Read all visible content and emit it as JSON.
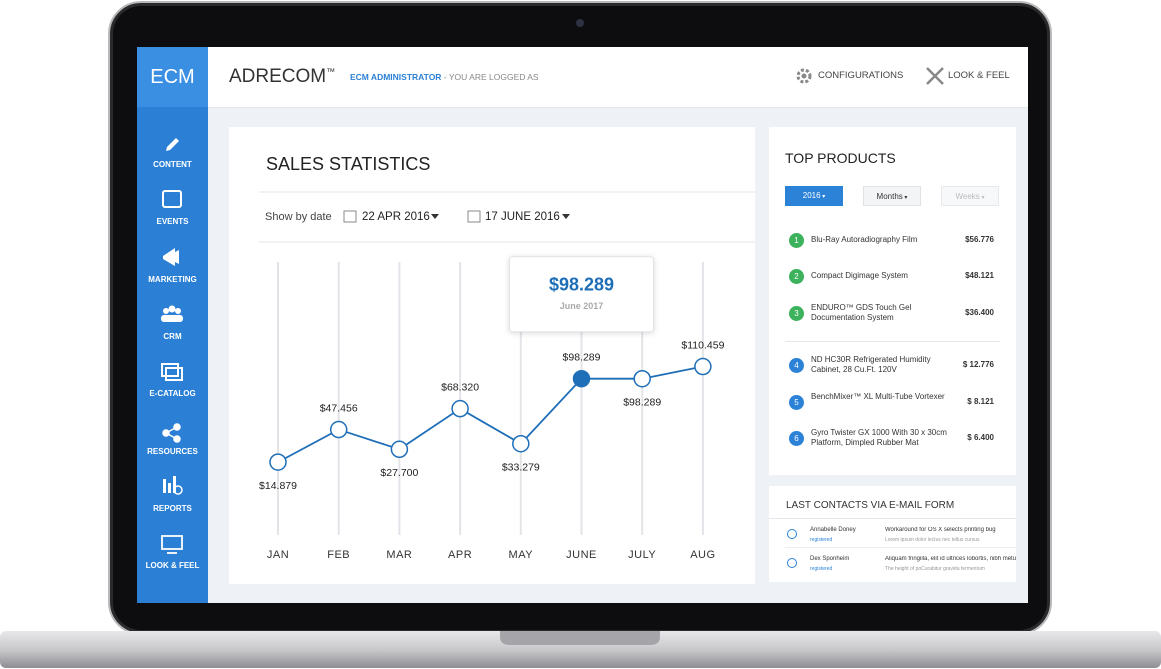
{
  "sidebar": {
    "logo": "ECM",
    "items": [
      "CONTENT",
      "EVENTS",
      "MARKETING",
      "CRM",
      "E-CATALOG",
      "RESOURCES",
      "REPORTS",
      "LOOK & FEEL"
    ]
  },
  "header": {
    "brand": "ADRECOM",
    "brand_mark": "™",
    "user": "ECM ADMINISTRATOR",
    "status": " - YOU ARE LOGGED AS",
    "actions": [
      "CONFIGURATIONS",
      "LOOK & FEEL"
    ]
  },
  "sales": {
    "title": "SALES STATISTICS",
    "filter_label": "Show by date",
    "date_from": "22 APR 2016",
    "date_to": "17 JUNE 2016",
    "tooltip": {
      "value": "$98.289",
      "date": "June 2017"
    },
    "chart_data": {
      "type": "line",
      "categories": [
        "JAN",
        "FEB",
        "MAR",
        "APR",
        "MAY",
        "JUNE",
        "JULY",
        "AUG"
      ],
      "values": [
        14.879,
        47.456,
        27.7,
        68.32,
        33.279,
        98.289,
        98.289,
        110.459
      ],
      "value_labels": [
        "$14.879",
        "$47.456",
        "$27.700",
        "$68.320",
        "$33.279",
        "$98.289",
        "$98.289",
        "$110.459"
      ],
      "color": "#1f6fb8",
      "ylim": [
        0,
        120
      ],
      "grid": true
    }
  },
  "top_products": {
    "title": "TOP PRODUCTS",
    "filters": [
      "2016",
      "Months",
      "Weeks"
    ],
    "items": [
      {
        "rank": 1,
        "name": "Blu-Ray Autoradiography Film",
        "price": "$56.776",
        "color": "#3cb25c"
      },
      {
        "rank": 2,
        "name": "Compact Digimage System",
        "price": "$48.121",
        "color": "#3cb25c"
      },
      {
        "rank": 3,
        "name": "ENDURO™ GDS Touch Gel Documentation System",
        "price": "$36.400",
        "color": "#3cb25c"
      },
      {
        "rank": 4,
        "name": "ND HC30R Refrigerated Humidity Cabinet, 28 Cu.Ft. 120V",
        "price": "$ 12.776",
        "color": "#2b82d6"
      },
      {
        "rank": 5,
        "name": "BenchMixer™ XL Multi-Tube Vortexer",
        "price": "$ 8.121",
        "color": "#2b82d6"
      },
      {
        "rank": 6,
        "name": "Gyro Twister GX 1000 With 30 x 30cm Platform, Dimpled Rubber Mat",
        "price": "$ 6.400",
        "color": "#2b82d6"
      }
    ]
  },
  "contacts": {
    "title": "LAST CONTACTS VIA E-MAIL FORM",
    "rows": [
      {
        "name": "Annabelle Doney",
        "status": "registered",
        "message": "Workaround for OS X selects printing bug",
        "detail": "Lorem ipsum dolor lectus nec tellus cursus"
      },
      {
        "name": "Dex Sponheim",
        "status": "registered",
        "message": "Aliquam fringilla, elit id ultrices lobortis, nibh metus",
        "detail": "The height of poCurabitur gravida fermentum"
      }
    ]
  }
}
